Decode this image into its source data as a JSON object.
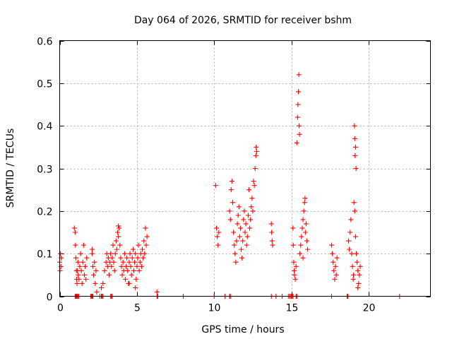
{
  "chart_data": {
    "type": "scatter",
    "title": "Day 064 of 2026, SRMTID for receiver bshm",
    "xlabel": "GPS time / hours",
    "ylabel": "SRMTID / TECUs",
    "xlim": [
      0,
      24
    ],
    "ylim": [
      0,
      0.6
    ],
    "xticks": [
      0,
      5,
      10,
      15,
      20
    ],
    "xtick_labels": [
      "0",
      "5",
      "10",
      "15",
      "20"
    ],
    "yticks": [
      0,
      0.1,
      0.2,
      0.3,
      0.4,
      0.5,
      0.6
    ],
    "ytick_labels": [
      "0",
      "0.1",
      "0.2",
      "0.3",
      "0.4",
      "0.5",
      "0.6"
    ],
    "grid": true,
    "marker": "+",
    "marker_color": "#ff0000",
    "series": [
      {
        "name": "SRMTID",
        "points": [
          [
            0.0,
            0.08
          ],
          [
            0.02,
            0.06
          ],
          [
            0.05,
            0.1
          ],
          [
            0.08,
            0.07
          ],
          [
            0.1,
            0.09
          ],
          [
            0.95,
            0.16
          ],
          [
            1.0,
            0.15
          ],
          [
            1.02,
            0.12
          ],
          [
            1.05,
            0.09
          ],
          [
            1.08,
            0.06
          ],
          [
            1.1,
            0.04
          ],
          [
            1.12,
            0.03
          ],
          [
            1.15,
            0.06
          ],
          [
            1.18,
            0.08
          ],
          [
            1.2,
            0.05
          ],
          [
            1.25,
            0.04
          ],
          [
            1.3,
            0.07
          ],
          [
            1.35,
            0.1
          ],
          [
            1.4,
            0.06
          ],
          [
            1.45,
            0.03
          ],
          [
            1.5,
            0.08
          ],
          [
            1.55,
            0.12
          ],
          [
            1.6,
            0.05
          ],
          [
            1.65,
            0.07
          ],
          [
            1.7,
            0.04
          ],
          [
            1.75,
            0.09
          ],
          [
            2.1,
            0.1
          ],
          [
            2.15,
            0.07
          ],
          [
            2.2,
            0.05
          ],
          [
            2.25,
            0.08
          ],
          [
            2.3,
            0.03
          ],
          [
            2.35,
            0.06
          ],
          [
            2.4,
            0.01
          ],
          [
            2.1,
            0.11
          ],
          [
            2.7,
            0.02
          ],
          [
            2.8,
            0.03
          ],
          [
            2.9,
            0.06
          ],
          [
            3.0,
            0.08
          ],
          [
            3.05,
            0.1
          ],
          [
            3.1,
            0.07
          ],
          [
            3.15,
            0.09
          ],
          [
            3.2,
            0.05
          ],
          [
            3.25,
            0.08
          ],
          [
            3.3,
            0.1
          ],
          [
            3.35,
            0.07
          ],
          [
            3.4,
            0.09
          ],
          [
            3.45,
            0.12
          ],
          [
            3.5,
            0.08
          ],
          [
            3.55,
            0.06
          ],
          [
            3.6,
            0.1
          ],
          [
            3.65,
            0.13
          ],
          [
            3.7,
            0.11
          ],
          [
            3.75,
            0.15
          ],
          [
            3.8,
            0.14
          ],
          [
            3.85,
            0.16
          ],
          [
            3.9,
            0.12
          ],
          [
            3.95,
            0.09
          ],
          [
            4.0,
            0.07
          ],
          [
            4.05,
            0.05
          ],
          [
            4.1,
            0.08
          ],
          [
            4.15,
            0.06
          ],
          [
            4.2,
            0.1
          ],
          [
            4.25,
            0.04
          ],
          [
            4.3,
            0.07
          ],
          [
            4.35,
            0.09
          ],
          [
            4.4,
            0.06
          ],
          [
            4.45,
            0.03
          ],
          [
            4.5,
            0.08
          ],
          [
            4.55,
            0.1
          ],
          [
            4.6,
            0.07
          ],
          [
            4.65,
            0.05
          ],
          [
            4.7,
            0.09
          ],
          [
            4.75,
            0.11
          ],
          [
            4.8,
            0.06
          ],
          [
            4.85,
            0.08
          ],
          [
            4.9,
            0.1
          ],
          [
            4.95,
            0.04
          ],
          [
            5.0,
            0.07
          ],
          [
            5.05,
            0.09
          ],
          [
            5.1,
            0.12
          ],
          [
            5.15,
            0.06
          ],
          [
            5.2,
            0.08
          ],
          [
            5.25,
            0.1
          ],
          [
            5.3,
            0.07
          ],
          [
            5.35,
            0.11
          ],
          [
            5.4,
            0.09
          ],
          [
            5.45,
            0.13
          ],
          [
            5.5,
            0.1
          ],
          [
            5.55,
            0.16
          ],
          [
            5.6,
            0.12
          ],
          [
            5.65,
            0.14
          ],
          [
            3.8,
            0.165
          ],
          [
            4.5,
            0.03
          ],
          [
            4.9,
            0.02
          ],
          [
            6.3,
            0.01
          ],
          [
            10.1,
            0.26
          ],
          [
            10.15,
            0.16
          ],
          [
            10.2,
            0.14
          ],
          [
            10.25,
            0.12
          ],
          [
            10.3,
            0.15
          ],
          [
            11.0,
            0.2
          ],
          [
            11.05,
            0.18
          ],
          [
            11.1,
            0.25
          ],
          [
            11.15,
            0.27
          ],
          [
            11.2,
            0.22
          ],
          [
            11.25,
            0.15
          ],
          [
            11.3,
            0.12
          ],
          [
            11.35,
            0.1
          ],
          [
            11.4,
            0.08
          ],
          [
            11.45,
            0.13
          ],
          [
            11.5,
            0.17
          ],
          [
            11.55,
            0.19
          ],
          [
            11.6,
            0.21
          ],
          [
            11.65,
            0.14
          ],
          [
            11.7,
            0.16
          ],
          [
            11.75,
            0.11
          ],
          [
            11.8,
            0.09
          ],
          [
            11.85,
            0.13
          ],
          [
            11.9,
            0.18
          ],
          [
            11.95,
            0.2
          ],
          [
            12.0,
            0.15
          ],
          [
            12.05,
            0.17
          ],
          [
            12.1,
            0.12
          ],
          [
            12.15,
            0.14
          ],
          [
            12.2,
            0.19
          ],
          [
            12.25,
            0.25
          ],
          [
            12.3,
            0.16
          ],
          [
            12.35,
            0.18
          ],
          [
            12.4,
            0.21
          ],
          [
            12.45,
            0.23
          ],
          [
            12.5,
            0.2
          ],
          [
            12.55,
            0.27
          ],
          [
            12.6,
            0.26
          ],
          [
            12.65,
            0.3
          ],
          [
            12.7,
            0.33
          ],
          [
            12.72,
            0.35
          ],
          [
            12.75,
            0.34
          ],
          [
            13.7,
            0.17
          ],
          [
            13.72,
            0.15
          ],
          [
            13.75,
            0.13
          ],
          [
            13.78,
            0.12
          ],
          [
            15.1,
            0.16
          ],
          [
            15.12,
            0.12
          ],
          [
            15.15,
            0.08
          ],
          [
            15.18,
            0.06
          ],
          [
            15.2,
            0.05
          ],
          [
            15.25,
            0.04
          ],
          [
            15.3,
            0.07
          ],
          [
            15.35,
            0.36
          ],
          [
            15.4,
            0.42
          ],
          [
            15.42,
            0.45
          ],
          [
            15.45,
            0.48
          ],
          [
            15.48,
            0.52
          ],
          [
            15.5,
            0.4
          ],
          [
            15.52,
            0.38
          ],
          [
            15.55,
            0.1
          ],
          [
            15.6,
            0.12
          ],
          [
            15.65,
            0.14
          ],
          [
            15.7,
            0.16
          ],
          [
            15.75,
            0.18
          ],
          [
            15.8,
            0.2
          ],
          [
            15.85,
            0.22
          ],
          [
            15.9,
            0.15
          ],
          [
            15.95,
            0.17
          ],
          [
            16.0,
            0.13
          ],
          [
            16.05,
            0.11
          ],
          [
            15.88,
            0.23
          ],
          [
            15.75,
            0.09
          ],
          [
            17.6,
            0.12
          ],
          [
            17.65,
            0.1
          ],
          [
            17.7,
            0.08
          ],
          [
            17.75,
            0.06
          ],
          [
            17.8,
            0.04
          ],
          [
            17.85,
            0.07
          ],
          [
            17.9,
            0.05
          ],
          [
            17.95,
            0.09
          ],
          [
            18.7,
            0.13
          ],
          [
            18.75,
            0.11
          ],
          [
            18.8,
            0.15
          ],
          [
            18.85,
            0.18
          ],
          [
            18.9,
            0.1
          ],
          [
            18.95,
            0.07
          ],
          [
            19.0,
            0.04
          ],
          [
            19.02,
            0.05
          ],
          [
            19.05,
            0.22
          ],
          [
            19.08,
            0.4
          ],
          [
            19.1,
            0.37
          ],
          [
            19.12,
            0.33
          ],
          [
            19.15,
            0.35
          ],
          [
            19.18,
            0.3
          ],
          [
            19.2,
            0.1
          ],
          [
            19.25,
            0.08
          ],
          [
            19.3,
            0.06
          ],
          [
            19.35,
            0.03
          ],
          [
            19.4,
            0.05
          ],
          [
            19.45,
            0.07
          ],
          [
            19.1,
            0.2
          ],
          [
            19.15,
            0.14
          ],
          [
            19.3,
            0.02
          ]
        ],
        "zeros": [
          1.0,
          1.05,
          1.1,
          1.15,
          1.2,
          1.25,
          2.0,
          2.05,
          2.1,
          2.15,
          2.6,
          2.7,
          2.75,
          2.8,
          3.3,
          3.35,
          3.4,
          6.3,
          6.35,
          8.0,
          10.0,
          10.7,
          11.0,
          11.05,
          13.7,
          14.0,
          14.4,
          14.8,
          14.9,
          15.0,
          15.05,
          15.1,
          15.3,
          15.35,
          17.6,
          18.6,
          18.65,
          22.0
        ]
      }
    ]
  }
}
